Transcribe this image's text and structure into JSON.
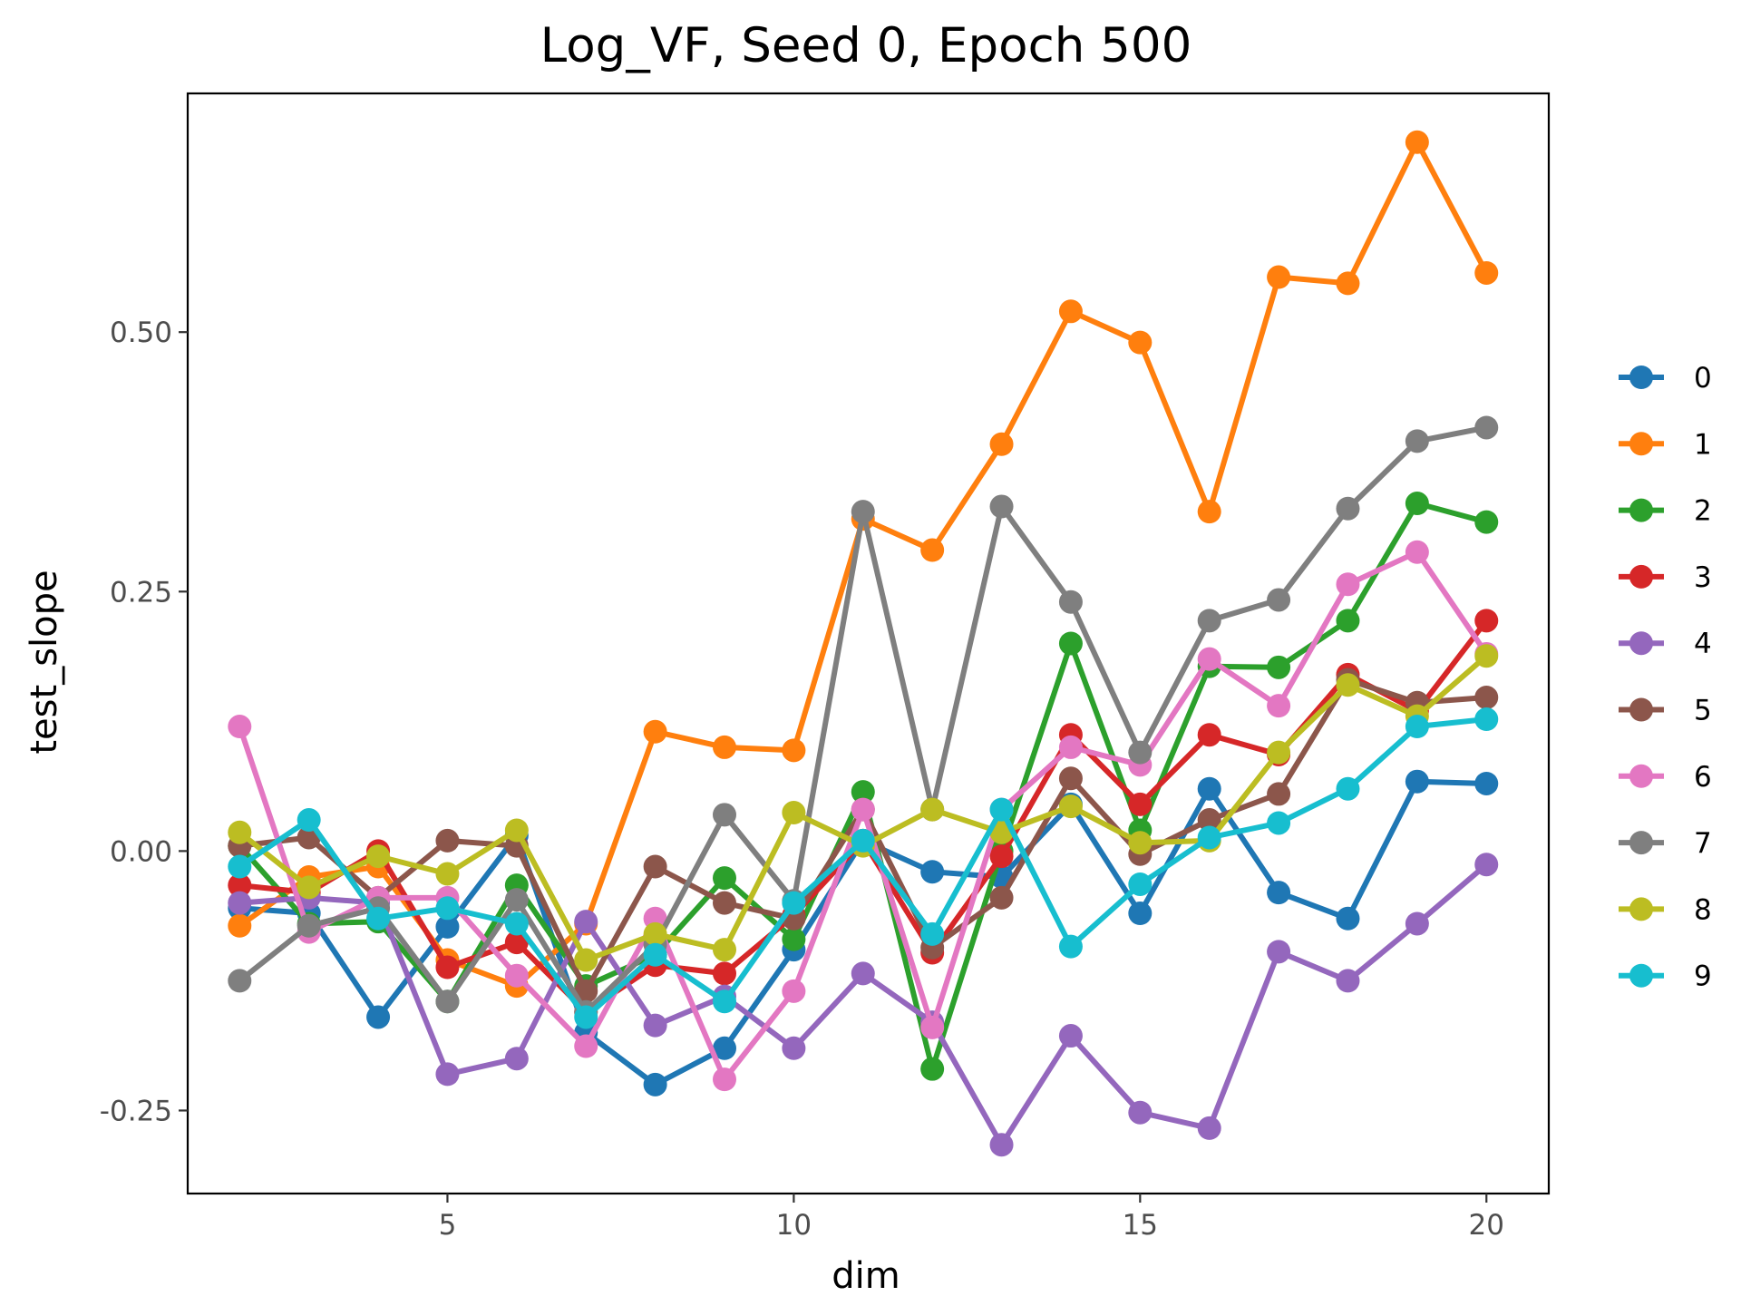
{
  "chart_data": {
    "type": "line",
    "title": "Log_VF, Seed 0, Epoch 500",
    "xlabel": "dim",
    "ylabel": "test_slope",
    "xlim": [
      1.25,
      20.9
    ],
    "ylim": [
      -0.33,
      0.73
    ],
    "xticks": [
      5,
      10,
      15,
      20
    ],
    "xtick_labels": [
      "5",
      "10",
      "15",
      "20"
    ],
    "yticks": [
      -0.25,
      0,
      0.25,
      0.5
    ],
    "ytick_labels": [
      "-0.25",
      "0.00",
      "0.25",
      "0.50"
    ],
    "grid": false,
    "legend_position": "right",
    "x": [
      2,
      3,
      4,
      5,
      6,
      7,
      8,
      9,
      10,
      11,
      12,
      13,
      14,
      15,
      16,
      17,
      18,
      19,
      20
    ],
    "series": [
      {
        "name": "0",
        "color": "#1f77b4",
        "values": [
          -0.055,
          -0.06,
          -0.16,
          -0.073,
          0.015,
          -0.175,
          -0.225,
          -0.19,
          -0.095,
          0.01,
          -0.02,
          -0.025,
          0.045,
          -0.06,
          0.06,
          -0.04,
          -0.065,
          0.067,
          0.065
        ]
      },
      {
        "name": "1",
        "color": "#ff7f0e",
        "values": [
          -0.072,
          -0.025,
          -0.015,
          -0.105,
          -0.13,
          -0.07,
          0.115,
          0.1,
          0.097,
          0.32,
          0.29,
          0.392,
          0.52,
          0.49,
          0.327,
          0.553,
          0.547,
          0.683,
          0.557
        ]
      },
      {
        "name": "2",
        "color": "#2ca02c",
        "values": [
          0.005,
          -0.07,
          -0.068,
          -0.145,
          -0.033,
          -0.13,
          -0.1,
          -0.026,
          -0.085,
          0.057,
          -0.21,
          0.0,
          0.2,
          0.02,
          0.178,
          0.177,
          0.222,
          0.335,
          0.317
        ]
      },
      {
        "name": "3",
        "color": "#d62728",
        "values": [
          -0.033,
          -0.04,
          0.0,
          -0.112,
          -0.088,
          -0.155,
          -0.11,
          -0.118,
          -0.062,
          0.01,
          -0.098,
          -0.005,
          0.112,
          0.045,
          0.112,
          0.093,
          0.17,
          0.135,
          0.222
        ]
      },
      {
        "name": "4",
        "color": "#9467bd",
        "values": [
          -0.05,
          -0.045,
          -0.05,
          -0.215,
          -0.2,
          -0.068,
          -0.168,
          -0.14,
          -0.19,
          -0.118,
          -0.165,
          -0.283,
          -0.178,
          -0.252,
          -0.267,
          -0.097,
          -0.125,
          -0.07,
          -0.013
        ]
      },
      {
        "name": "5",
        "color": "#8c564b",
        "values": [
          0.005,
          0.013,
          -0.045,
          0.01,
          0.005,
          -0.135,
          -0.015,
          -0.05,
          -0.065,
          0.04,
          -0.093,
          -0.045,
          0.07,
          -0.003,
          0.03,
          0.055,
          0.165,
          0.143,
          0.148
        ]
      },
      {
        "name": "6",
        "color": "#e377c2",
        "values": [
          0.12,
          -0.078,
          -0.045,
          -0.045,
          -0.12,
          -0.188,
          -0.065,
          -0.22,
          -0.135,
          0.04,
          -0.17,
          0.04,
          0.1,
          0.083,
          0.185,
          0.14,
          0.257,
          0.288,
          0.19
        ]
      },
      {
        "name": "7",
        "color": "#7f7f7f",
        "values": [
          -0.125,
          -0.072,
          -0.055,
          -0.145,
          -0.047,
          -0.155,
          -0.09,
          0.035,
          -0.048,
          0.327,
          0.04,
          0.332,
          0.24,
          0.095,
          0.222,
          0.242,
          0.33,
          0.395,
          0.408
        ]
      },
      {
        "name": "8",
        "color": "#bcbd22",
        "values": [
          0.018,
          -0.035,
          -0.005,
          -0.022,
          0.02,
          -0.105,
          -0.08,
          -0.095,
          0.037,
          0.005,
          0.04,
          0.018,
          0.043,
          0.008,
          0.01,
          0.095,
          0.16,
          0.13,
          0.188
        ]
      },
      {
        "name": "9",
        "color": "#17becf",
        "values": [
          -0.015,
          0.03,
          -0.065,
          -0.055,
          -0.07,
          -0.16,
          -0.1,
          -0.145,
          -0.05,
          0.01,
          -0.08,
          0.04,
          -0.092,
          -0.032,
          0.013,
          0.027,
          0.06,
          0.12,
          0.127
        ]
      }
    ]
  }
}
